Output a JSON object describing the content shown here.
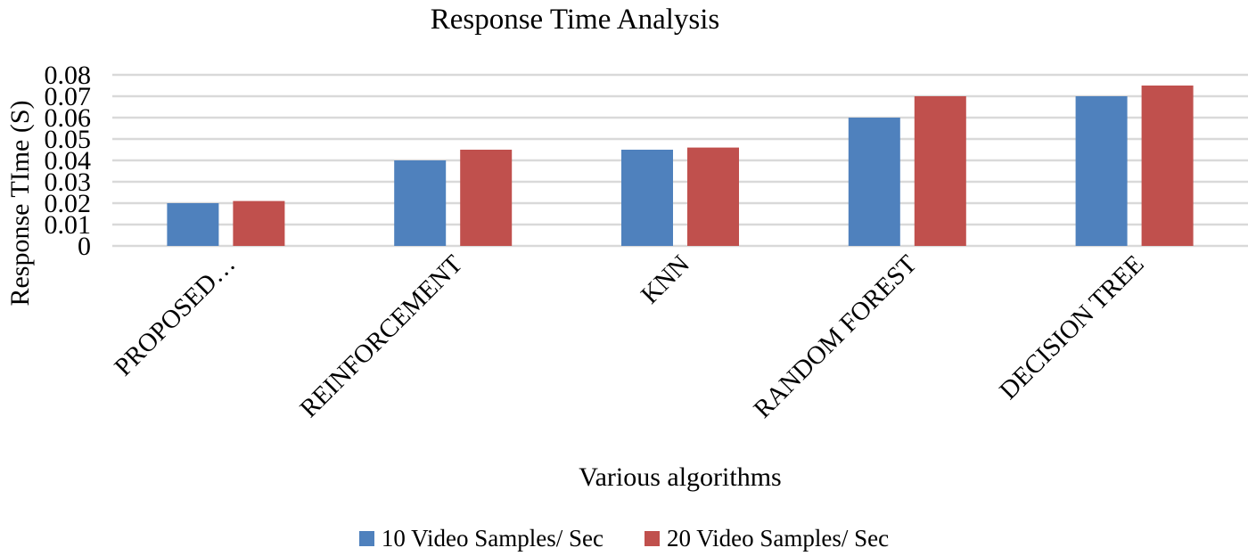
{
  "chart_data": {
    "type": "bar",
    "title": "Response Time Analysis",
    "xlabel": "Various algorithms",
    "ylabel": "Response TIme (S)",
    "categories": [
      "PROPOSED…",
      "REINFORCEMENT",
      "KNN",
      "RANDOM FOREST",
      "DECISION TREE"
    ],
    "series": [
      {
        "name": "10 Video Samples/ Sec",
        "color": "#4F81BD",
        "values": [
          0.02,
          0.04,
          0.045,
          0.06,
          0.07
        ]
      },
      {
        "name": "20 Video Samples/ Sec",
        "color": "#C0504D",
        "values": [
          0.021,
          0.045,
          0.046,
          0.07,
          0.075
        ]
      }
    ],
    "ylim": [
      0,
      0.08
    ],
    "yticks": [
      "0",
      "0.01",
      "0.02",
      "0.03",
      "0.04",
      "0.05",
      "0.06",
      "0.07",
      "0.08"
    ],
    "grid": true,
    "legend_position": "bottom"
  }
}
